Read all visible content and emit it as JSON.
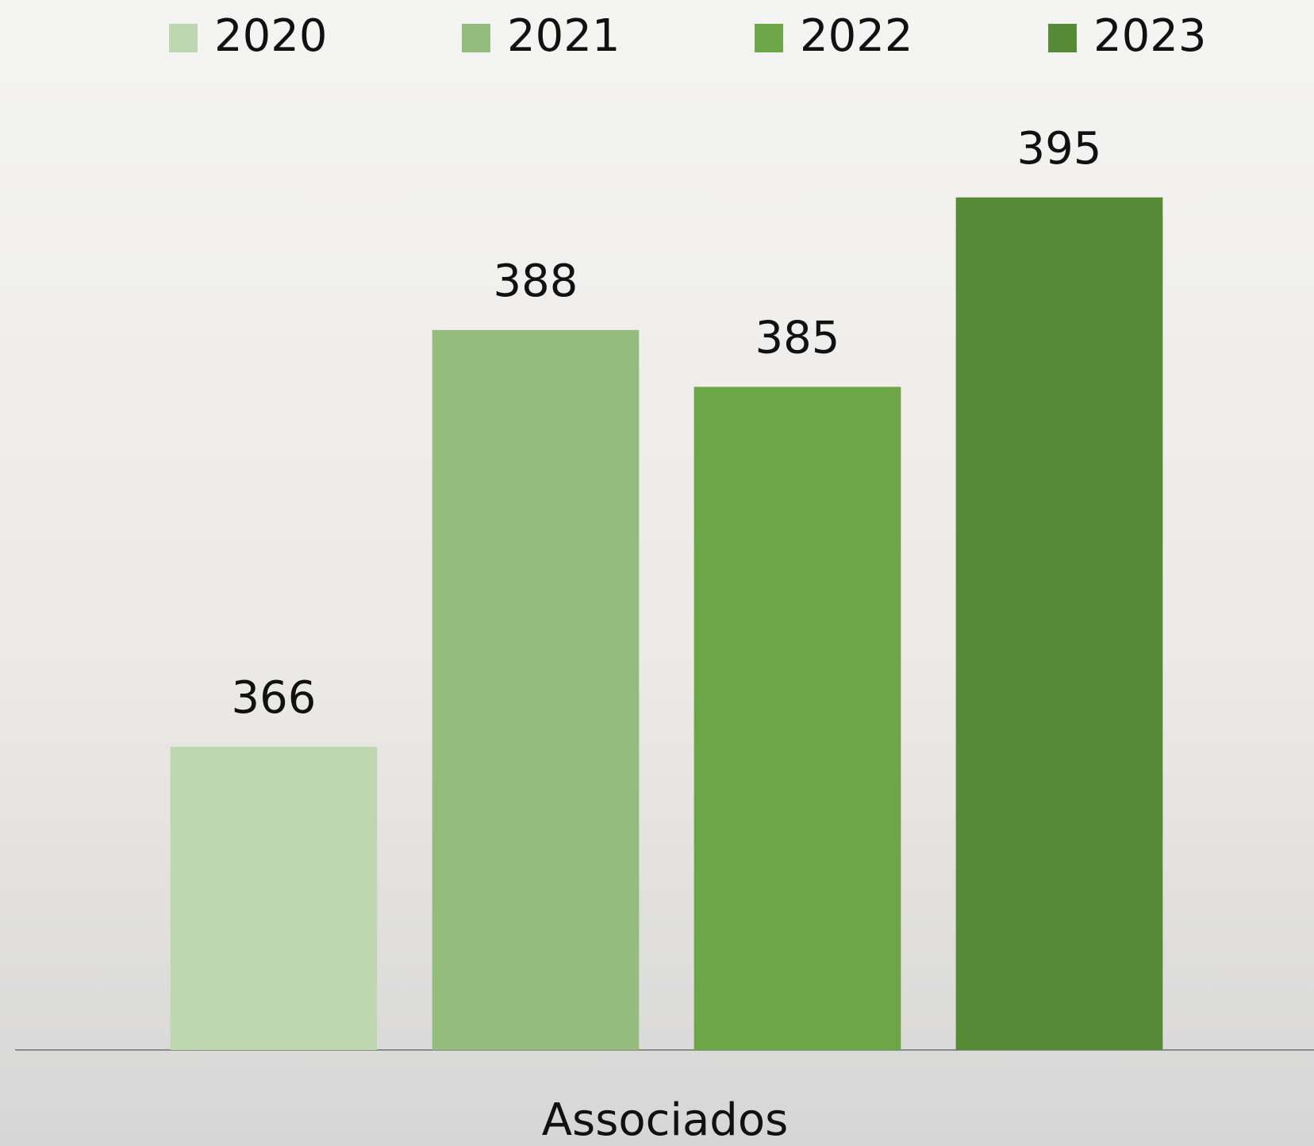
{
  "chart_data": {
    "type": "bar",
    "categories": [
      "Associados"
    ],
    "series": [
      {
        "name": "2020",
        "color": "#bdd7b0",
        "values": [
          366
        ]
      },
      {
        "name": "2021",
        "color": "#93bc7d",
        "values": [
          388
        ]
      },
      {
        "name": "2022",
        "color": "#6ca646",
        "values": [
          385
        ]
      },
      {
        "name": "2023",
        "color": "#578a37",
        "values": [
          395
        ]
      }
    ],
    "ylim": [
      350,
      405
    ],
    "legend": "top"
  }
}
